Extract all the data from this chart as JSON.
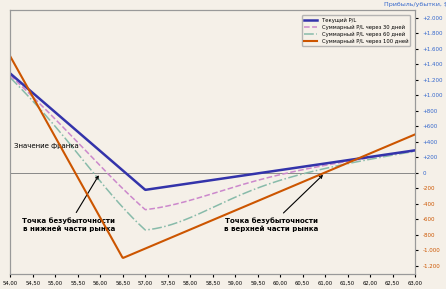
{
  "title_right_top": "Прибыль/убытки, $",
  "xlabel_left": "Значение франка",
  "xmin": 54.0,
  "xmax": 63.0,
  "ymin": -1300,
  "ymax": 2100,
  "background_color": "#f5f0e8",
  "grid_color": "#cccccc",
  "lines": [
    {
      "label": "Текущий P/L",
      "color": "#3333aa",
      "lw": 1.8,
      "ls": "solid",
      "zorder": 5
    },
    {
      "label": "Суммарный P/L через 30 дней",
      "color": "#cc88cc",
      "lw": 1.1,
      "ls": "--",
      "zorder": 4
    },
    {
      "label": "Суммарный P/L через 60 дней",
      "color": "#88bbaa",
      "lw": 1.1,
      "ls": "-.",
      "zorder": 3
    },
    {
      "label": "Суммарный P/L через 100 дней",
      "color": "#cc5500",
      "lw": 1.5,
      "ls": "solid",
      "zorder": 6
    }
  ],
  "strike": 57.0,
  "lower_breakeven_x": 56.0,
  "upper_breakeven_x": 61.0,
  "annotation_lower": "Точка безубыточности\nв нижней части рынка",
  "annotation_upper": "Точка безубыточности\nв верхней части рынка",
  "yticks_blue": [
    2000,
    1800,
    1600,
    1400,
    1200,
    1000,
    800,
    600,
    400,
    200,
    0
  ],
  "yticks_orange": [
    -200,
    -400,
    -600,
    -800,
    -1000,
    -1200
  ],
  "ytick_label_blue_color": "#3366cc",
  "ytick_label_orange_color": "#cc5500"
}
